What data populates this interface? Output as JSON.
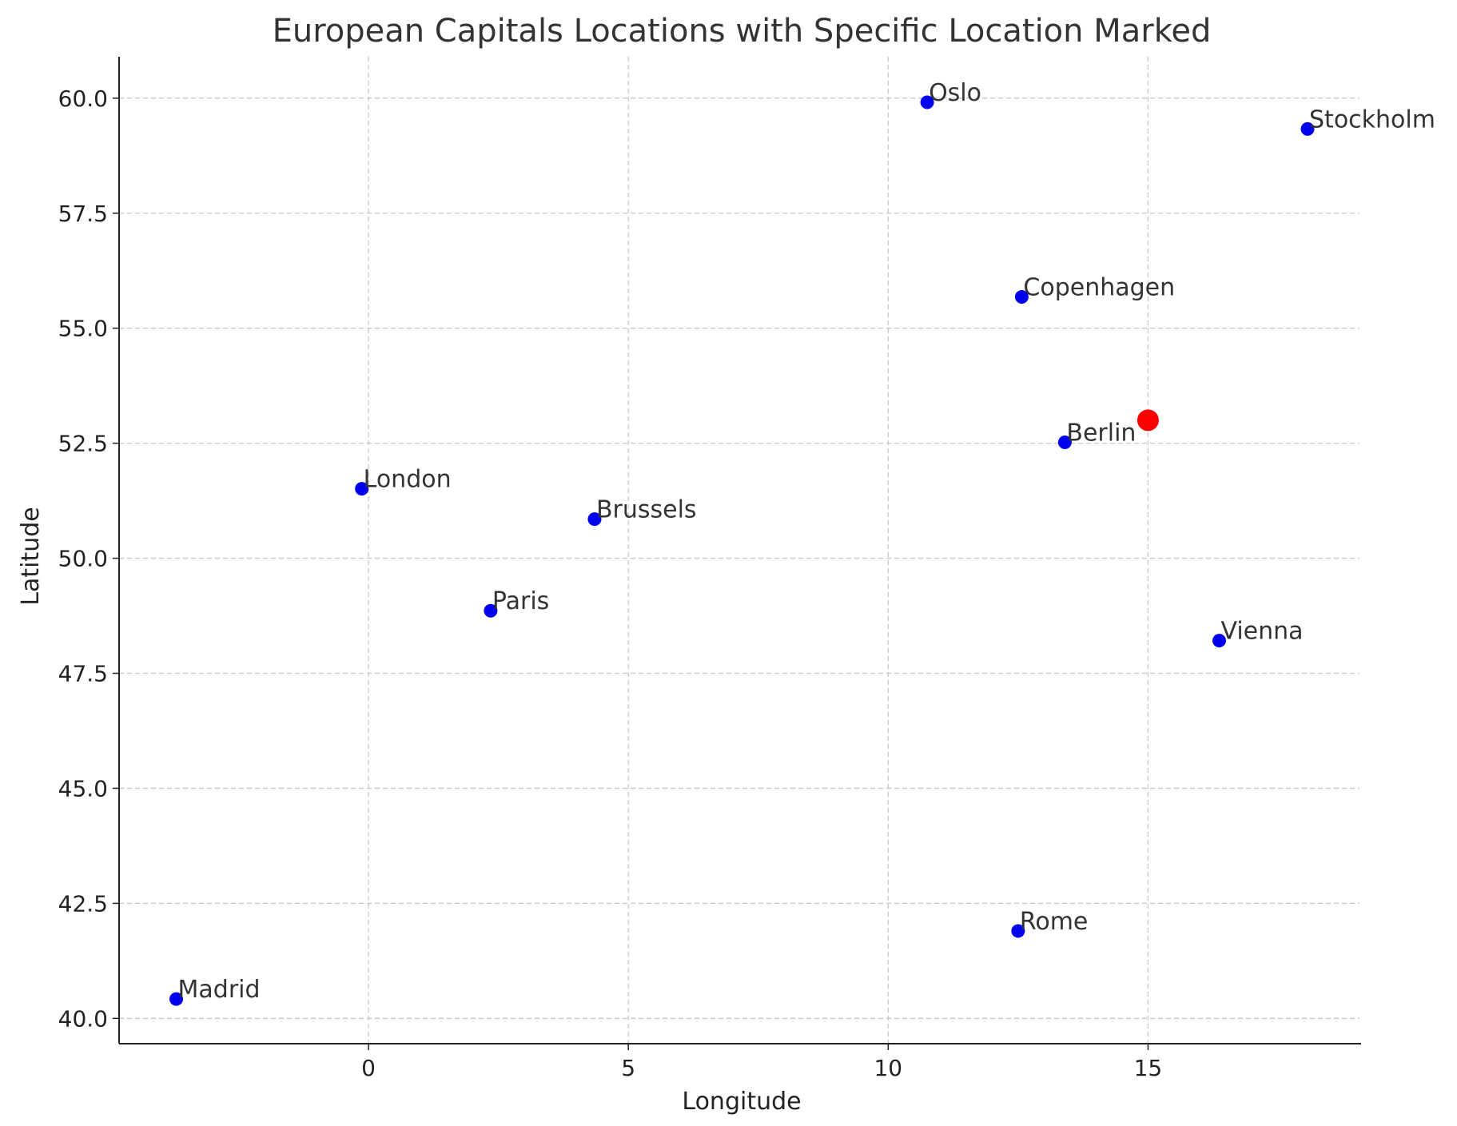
{
  "chart_data": {
    "type": "scatter",
    "title": "European Capitals Locations with Specific Location Marked",
    "xlabel": "Longitude",
    "ylabel": "Latitude",
    "xlim": [
      -4.8,
      19.1
    ],
    "ylim": [
      39.45,
      60.9
    ],
    "xticks": [
      0,
      5,
      10,
      15
    ],
    "yticks": [
      40.0,
      42.5,
      45.0,
      47.5,
      50.0,
      52.5,
      55.0,
      57.5,
      60.0
    ],
    "grid": true,
    "series": [
      {
        "color": "#0000ee",
        "points": [
          {
            "label": "London",
            "x": -0.13,
            "y": 51.51
          },
          {
            "label": "Paris",
            "x": 2.35,
            "y": 48.86
          },
          {
            "label": "Berlin",
            "x": 13.4,
            "y": 52.52
          },
          {
            "label": "Madrid",
            "x": -3.7,
            "y": 40.42
          },
          {
            "label": "Rome",
            "x": 12.5,
            "y": 41.9
          },
          {
            "label": "Vienna",
            "x": 16.37,
            "y": 48.21
          },
          {
            "label": "Brussels",
            "x": 4.35,
            "y": 50.85
          },
          {
            "label": "Copenhagen",
            "x": 12.57,
            "y": 55.68
          },
          {
            "label": "Oslo",
            "x": 10.75,
            "y": 59.91
          },
          {
            "label": "Stockholm",
            "x": 18.07,
            "y": 59.33
          }
        ]
      },
      {
        "color": "#ff0000",
        "points": [
          {
            "x": 15.0,
            "y": 53.0
          }
        ]
      }
    ]
  }
}
